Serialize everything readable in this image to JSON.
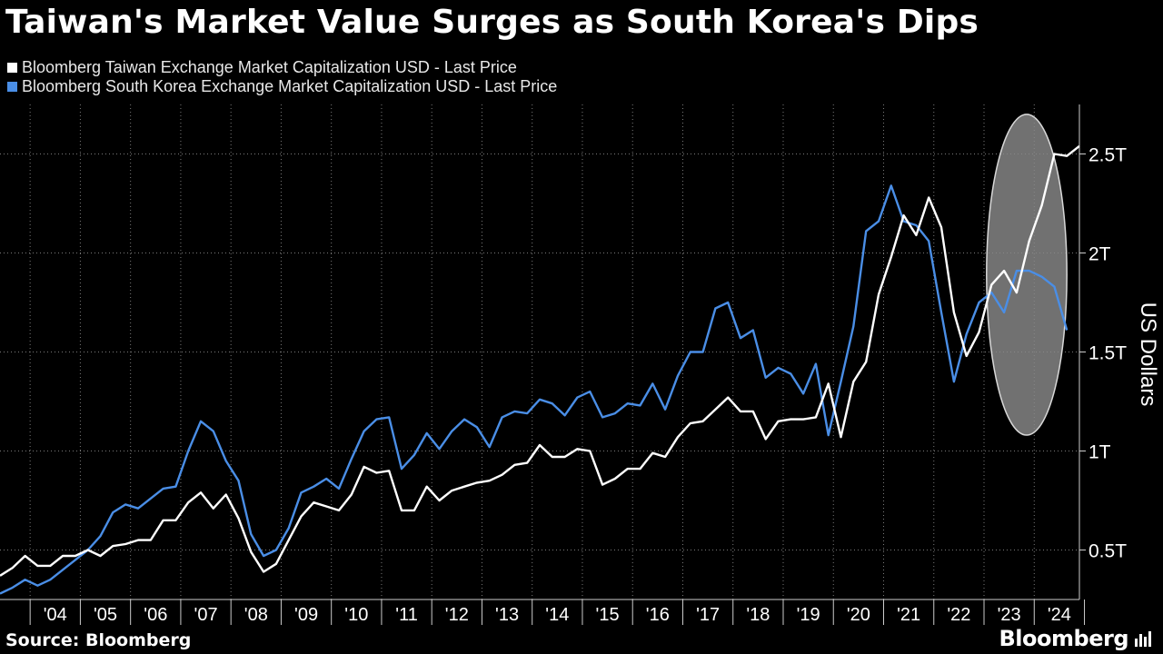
{
  "title": "Taiwan's Market Value Surges as South Korea's Dips",
  "source": "Source: Bloomberg",
  "brand": "Bloomberg",
  "colors": {
    "taiwan": "#ffffff",
    "korea": "#4a8ee6",
    "background": "#000000",
    "highlight": "#8a8a8a"
  },
  "chart_data": {
    "type": "line",
    "title": "Taiwan's Market Value Surges as South Korea's Dips",
    "ylabel": "US Dollars",
    "xlabel": "",
    "x_start": 2003.4,
    "x_step": 0.25,
    "x_tick_labels": [
      "'04",
      "'05",
      "'06",
      "'07",
      "'08",
      "'09",
      "'10",
      "'11",
      "'12",
      "'13",
      "'14",
      "'15",
      "'16",
      "'17",
      "'18",
      "'19",
      "'20",
      "'21",
      "'22",
      "'23",
      "'24"
    ],
    "x_tick_years": [
      2004,
      2005,
      2006,
      2007,
      2008,
      2009,
      2010,
      2011,
      2012,
      2013,
      2014,
      2015,
      2016,
      2017,
      2018,
      2019,
      2020,
      2021,
      2022,
      2023,
      2024
    ],
    "y_ticks": [
      0.5,
      1,
      1.5,
      2,
      2.5
    ],
    "y_tick_labels": [
      "0.5T",
      "1T",
      "1.5T",
      "2T",
      "2.5T"
    ],
    "ylim": [
      0.25,
      2.75
    ],
    "grid": true,
    "series": [
      {
        "name": "Bloomberg Taiwan Exchange Market Capitalization USD - Last Price",
        "values": [
          0.37,
          0.41,
          0.47,
          0.42,
          0.42,
          0.47,
          0.47,
          0.5,
          0.47,
          0.52,
          0.53,
          0.55,
          0.55,
          0.65,
          0.65,
          0.74,
          0.79,
          0.71,
          0.78,
          0.66,
          0.49,
          0.39,
          0.43,
          0.55,
          0.67,
          0.74,
          0.72,
          0.7,
          0.78,
          0.92,
          0.89,
          0.9,
          0.7,
          0.7,
          0.82,
          0.75,
          0.8,
          0.82,
          0.84,
          0.85,
          0.88,
          0.93,
          0.94,
          1.03,
          0.97,
          0.97,
          1.01,
          1.0,
          0.83,
          0.86,
          0.91,
          0.91,
          0.99,
          0.97,
          1.07,
          1.14,
          1.15,
          1.21,
          1.27,
          1.2,
          1.2,
          1.06,
          1.15,
          1.16,
          1.16,
          1.17,
          1.34,
          1.07,
          1.35,
          1.45,
          1.79,
          1.98,
          2.19,
          2.09,
          2.28,
          2.13,
          1.7,
          1.48,
          1.6,
          1.84,
          1.91,
          1.8,
          2.06,
          2.24,
          2.5,
          2.49,
          2.54
        ]
      },
      {
        "name": "Bloomberg South Korea Exchange Market Capitalization USD - Last Price",
        "values": [
          0.28,
          0.31,
          0.35,
          0.32,
          0.35,
          0.4,
          0.45,
          0.5,
          0.57,
          0.69,
          0.73,
          0.71,
          0.76,
          0.81,
          0.82,
          1.0,
          1.15,
          1.1,
          0.95,
          0.85,
          0.58,
          0.47,
          0.5,
          0.61,
          0.79,
          0.82,
          0.86,
          0.81,
          0.96,
          1.1,
          1.16,
          1.17,
          0.91,
          0.98,
          1.09,
          1.01,
          1.1,
          1.16,
          1.12,
          1.02,
          1.17,
          1.2,
          1.19,
          1.26,
          1.24,
          1.18,
          1.27,
          1.3,
          1.17,
          1.19,
          1.24,
          1.23,
          1.34,
          1.21,
          1.38,
          1.5,
          1.5,
          1.72,
          1.75,
          1.57,
          1.61,
          1.37,
          1.42,
          1.39,
          1.29,
          1.44,
          1.08,
          1.35,
          1.63,
          2.11,
          2.16,
          2.34,
          2.16,
          2.14,
          2.06,
          1.7,
          1.35,
          1.59,
          1.75,
          1.8,
          1.7,
          1.91,
          1.91,
          1.88,
          1.83,
          1.61
        ]
      }
    ],
    "highlight": {
      "shape": "ellipse",
      "x_range": [
        2023.05,
        2024.65
      ],
      "y_range": [
        1.08,
        2.7
      ]
    }
  }
}
